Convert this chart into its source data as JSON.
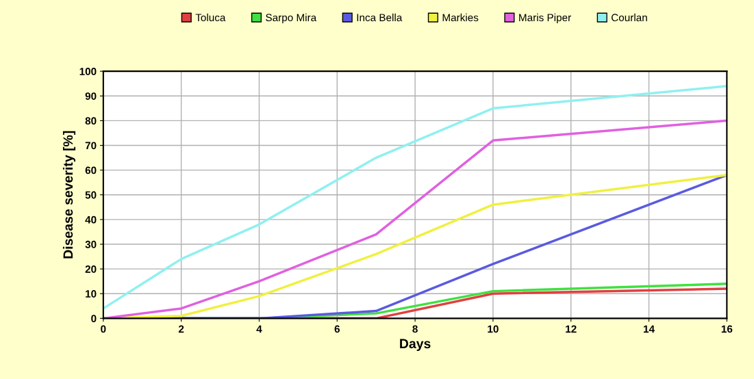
{
  "chart_data": {
    "type": "line",
    "xlabel": "Days",
    "ylabel": "Disease severity [%]",
    "x": [
      0,
      2,
      4,
      7,
      10,
      16
    ],
    "series": [
      {
        "name": "Toluca",
        "color": "#e04040",
        "values": [
          0,
          0,
          0,
          0,
          10,
          12
        ]
      },
      {
        "name": "Sarpo Mira",
        "color": "#40e040",
        "values": [
          0,
          0,
          0,
          2,
          11,
          14
        ]
      },
      {
        "name": "Inca Bella",
        "color": "#5a5ae0",
        "values": [
          0,
          0,
          0,
          3,
          22,
          58
        ]
      },
      {
        "name": "Markies",
        "color": "#f0f040",
        "values": [
          0,
          1,
          9,
          26,
          46,
          58
        ]
      },
      {
        "name": "Maris Piper",
        "color": "#e060e0",
        "values": [
          0,
          4,
          15,
          34,
          72,
          80
        ]
      },
      {
        "name": "Courlan",
        "color": "#90f0f0",
        "values": [
          4,
          24,
          38,
          65,
          85,
          94
        ]
      }
    ],
    "xlim": [
      0,
      16
    ],
    "xticks": [
      0,
      2,
      4,
      6,
      8,
      10,
      12,
      14,
      16
    ],
    "ylim": [
      0,
      100
    ],
    "yticks": [
      0,
      10,
      20,
      30,
      40,
      50,
      60,
      70,
      80,
      90,
      100
    ],
    "grid": true,
    "legend": "top",
    "marker": "none",
    "line_style": "solid"
  }
}
